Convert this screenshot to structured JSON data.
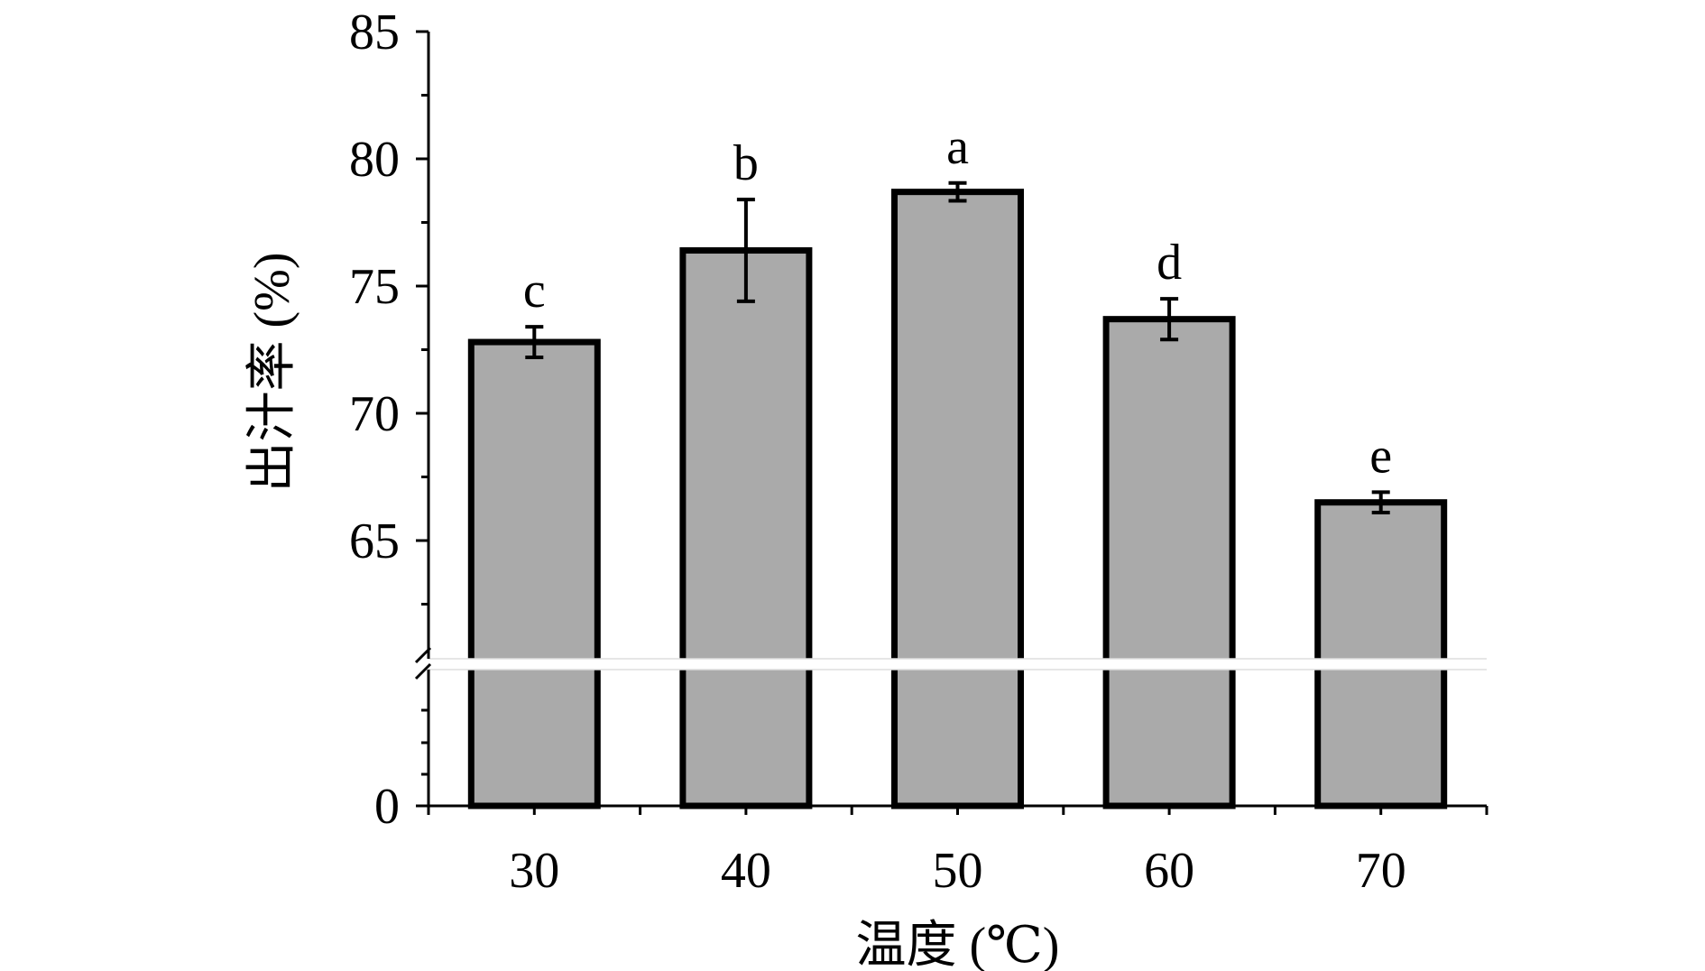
{
  "chart_data": {
    "type": "bar",
    "categories": [
      "30",
      "40",
      "50",
      "60",
      "70"
    ],
    "values": [
      72.8,
      76.4,
      78.7,
      73.7,
      66.5
    ],
    "errors": [
      0.6,
      2.0,
      0.35,
      0.8,
      0.4
    ],
    "significance": [
      "c",
      "b",
      "a",
      "d",
      "e"
    ],
    "xlabel": "温度 (℃)",
    "ylabel": "出汁率 (%)",
    "ylim": [
      0,
      85
    ],
    "axis_break": [
      0,
      60
    ],
    "yticks": [
      0,
      65,
      70,
      75,
      80,
      85
    ],
    "bar_color": "#aaaaaa",
    "edge_color": "#000000",
    "grid": false,
    "legend": "none"
  }
}
